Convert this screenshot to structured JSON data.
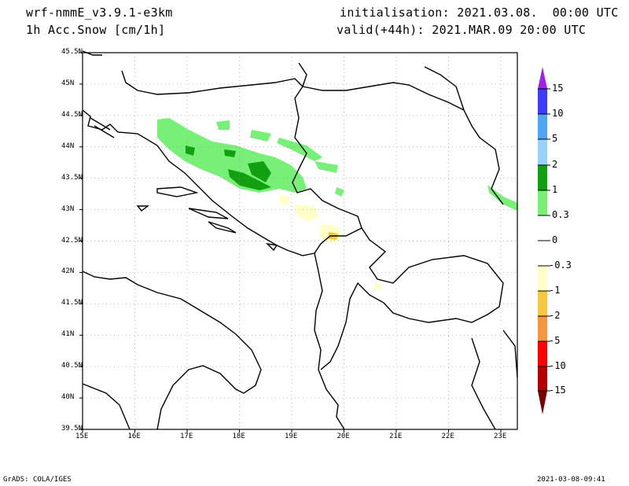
{
  "header": {
    "model": "wrf-nmmE_v3.9.1-e3km",
    "field": "1h Acc.Snow [cm/1h]",
    "init": "initialisation: 2021.03.08.  00:00 UTC",
    "valid": "valid(+44h): 2021.MAR.09 20:00 UTC"
  },
  "axes": {
    "lat_labels": [
      "45.5N",
      "45N",
      "44.5N",
      "44N",
      "43.5N",
      "43N",
      "42.5N",
      "42N",
      "41.5N",
      "41N",
      "40.5N",
      "40N",
      "39.5N"
    ],
    "lon_labels": [
      "15E",
      "16E",
      "17E",
      "18E",
      "19E",
      "20E",
      "21E",
      "22E",
      "23E"
    ]
  },
  "colorbar": {
    "labels": [
      "15",
      "10",
      "5",
      "2",
      "1",
      "0.3",
      "0",
      "-0.3",
      "-1",
      "-2",
      "-5",
      "-10",
      "-15"
    ],
    "colors": [
      "#a020f0",
      "#3c3cff",
      "#50a5f5",
      "#96d2fa",
      "#10a010",
      "#78f078",
      "#ffffff",
      "#ffffff",
      "#ffffc8",
      "#f5c840",
      "#f5963c",
      "#ff0000",
      "#b40000",
      "#780000"
    ]
  },
  "footer": {
    "left": "GrADS: COLA/IGES",
    "right": "2021-03-08-09:41"
  }
}
